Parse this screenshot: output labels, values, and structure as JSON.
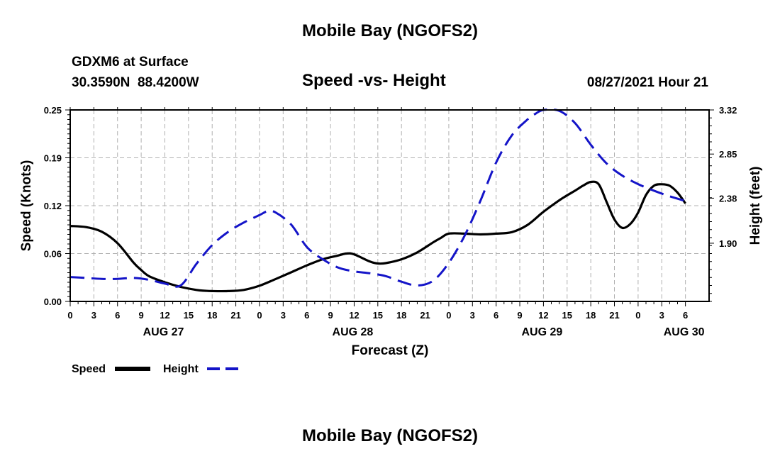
{
  "page": {
    "title_top": "Mobile Bay (NGOFS2)",
    "title_bottom": "Mobile Bay (NGOFS2)",
    "station": "GDXM6 at Surface",
    "coords": "30.3590N  88.4200W",
    "subtitle": "Speed -vs- Height",
    "datetime": "08/27/2021 Hour 21"
  },
  "colors": {
    "speed": "#000000",
    "height": "#1414c8",
    "grid": "#b0b0b0"
  },
  "chart_data": {
    "type": "line",
    "title": "Speed -vs- Height",
    "xlabel": "Forecast (Z)",
    "ylabel": "Speed (Knots)",
    "y2label": "Height (feet)",
    "x_range_hours": [
      0,
      81
    ],
    "ylim": [
      0,
      0.25
    ],
    "y2lim": [
      1.28,
      3.32
    ],
    "x_ticks": [
      {
        "h": 0,
        "label": "0"
      },
      {
        "h": 3,
        "label": "3"
      },
      {
        "h": 6,
        "label": "6"
      },
      {
        "h": 9,
        "label": "9"
      },
      {
        "h": 12,
        "label": "12"
      },
      {
        "h": 15,
        "label": "15"
      },
      {
        "h": 18,
        "label": "18"
      },
      {
        "h": 21,
        "label": "21"
      },
      {
        "h": 24,
        "label": "0"
      },
      {
        "h": 27,
        "label": "3"
      },
      {
        "h": 30,
        "label": "6"
      },
      {
        "h": 33,
        "label": "9"
      },
      {
        "h": 36,
        "label": "12"
      },
      {
        "h": 39,
        "label": "15"
      },
      {
        "h": 42,
        "label": "18"
      },
      {
        "h": 45,
        "label": "21"
      },
      {
        "h": 48,
        "label": "0"
      },
      {
        "h": 51,
        "label": "3"
      },
      {
        "h": 54,
        "label": "6"
      },
      {
        "h": 57,
        "label": "9"
      },
      {
        "h": 60,
        "label": "12"
      },
      {
        "h": 63,
        "label": "15"
      },
      {
        "h": 66,
        "label": "18"
      },
      {
        "h": 69,
        "label": "21"
      },
      {
        "h": 72,
        "label": "0"
      },
      {
        "h": 75,
        "label": "3"
      },
      {
        "h": 78,
        "label": "6"
      }
    ],
    "day_labels": [
      {
        "h": 12,
        "label": "AUG 27"
      },
      {
        "h": 36,
        "label": "AUG 28"
      },
      {
        "h": 60,
        "label": "AUG 29"
      },
      {
        "h": 78,
        "label": "AUG 30"
      }
    ],
    "y_ticks": [
      {
        "v": 0.0,
        "label": "0.00"
      },
      {
        "v": 0.0625,
        "label": "0.06"
      },
      {
        "v": 0.125,
        "label": "0.12"
      },
      {
        "v": 0.1875,
        "label": "0.19"
      },
      {
        "v": 0.25,
        "label": "0.25"
      }
    ],
    "y2_ticks": [
      {
        "v": 1.9,
        "label": "1.90"
      },
      {
        "v": 2.38,
        "label": "2.38"
      },
      {
        "v": 2.85,
        "label": "2.85"
      },
      {
        "v": 3.32,
        "label": "3.32"
      }
    ],
    "series": [
      {
        "name": "Speed",
        "axis": "left",
        "style": "solid",
        "x": [
          0,
          2,
          4,
          6,
          8,
          9,
          10,
          12,
          14,
          16,
          17,
          18,
          20,
          22,
          24,
          26,
          28,
          30,
          32,
          34,
          35,
          36,
          38,
          39,
          40,
          42,
          44,
          46,
          47,
          48,
          50,
          52,
          54,
          56,
          58,
          60,
          62,
          63,
          64,
          65,
          66,
          67,
          68,
          69,
          70,
          71,
          72,
          73,
          74,
          75,
          76,
          77,
          78
        ],
        "values": [
          0.0985,
          0.097,
          0.091,
          0.076,
          0.051,
          0.041,
          0.033,
          0.025,
          0.019,
          0.015,
          0.014,
          0.0135,
          0.0135,
          0.015,
          0.0205,
          0.029,
          0.038,
          0.047,
          0.055,
          0.06,
          0.0625,
          0.0615,
          0.052,
          0.0495,
          0.05,
          0.055,
          0.064,
          0.077,
          0.083,
          0.0885,
          0.0885,
          0.0875,
          0.0885,
          0.0905,
          0.1,
          0.117,
          0.132,
          0.1385,
          0.1445,
          0.151,
          0.156,
          0.153,
          0.13,
          0.107,
          0.096,
          0.101,
          0.116,
          0.139,
          0.151,
          0.153,
          0.151,
          0.142,
          0.128
        ]
      },
      {
        "name": "Height",
        "axis": "right",
        "style": "dashed",
        "x": [
          0,
          2,
          4,
          6,
          8,
          10,
          12,
          14,
          16,
          18,
          20,
          22,
          24,
          25,
          26,
          28,
          30,
          32,
          34,
          36,
          38,
          40,
          42,
          44,
          46,
          48,
          50,
          52,
          54,
          56,
          58,
          59,
          60,
          62,
          64,
          66,
          68,
          70,
          72,
          74,
          76,
          78
        ],
        "values": [
          1.54,
          1.53,
          1.52,
          1.52,
          1.53,
          1.51,
          1.47,
          1.45,
          1.68,
          1.88,
          2.02,
          2.12,
          2.2,
          2.24,
          2.23,
          2.1,
          1.86,
          1.73,
          1.64,
          1.6,
          1.58,
          1.55,
          1.49,
          1.45,
          1.5,
          1.69,
          1.98,
          2.35,
          2.76,
          3.05,
          3.22,
          3.28,
          3.32,
          3.31,
          3.18,
          2.95,
          2.75,
          2.62,
          2.53,
          2.46,
          2.4,
          2.35
        ]
      }
    ]
  }
}
